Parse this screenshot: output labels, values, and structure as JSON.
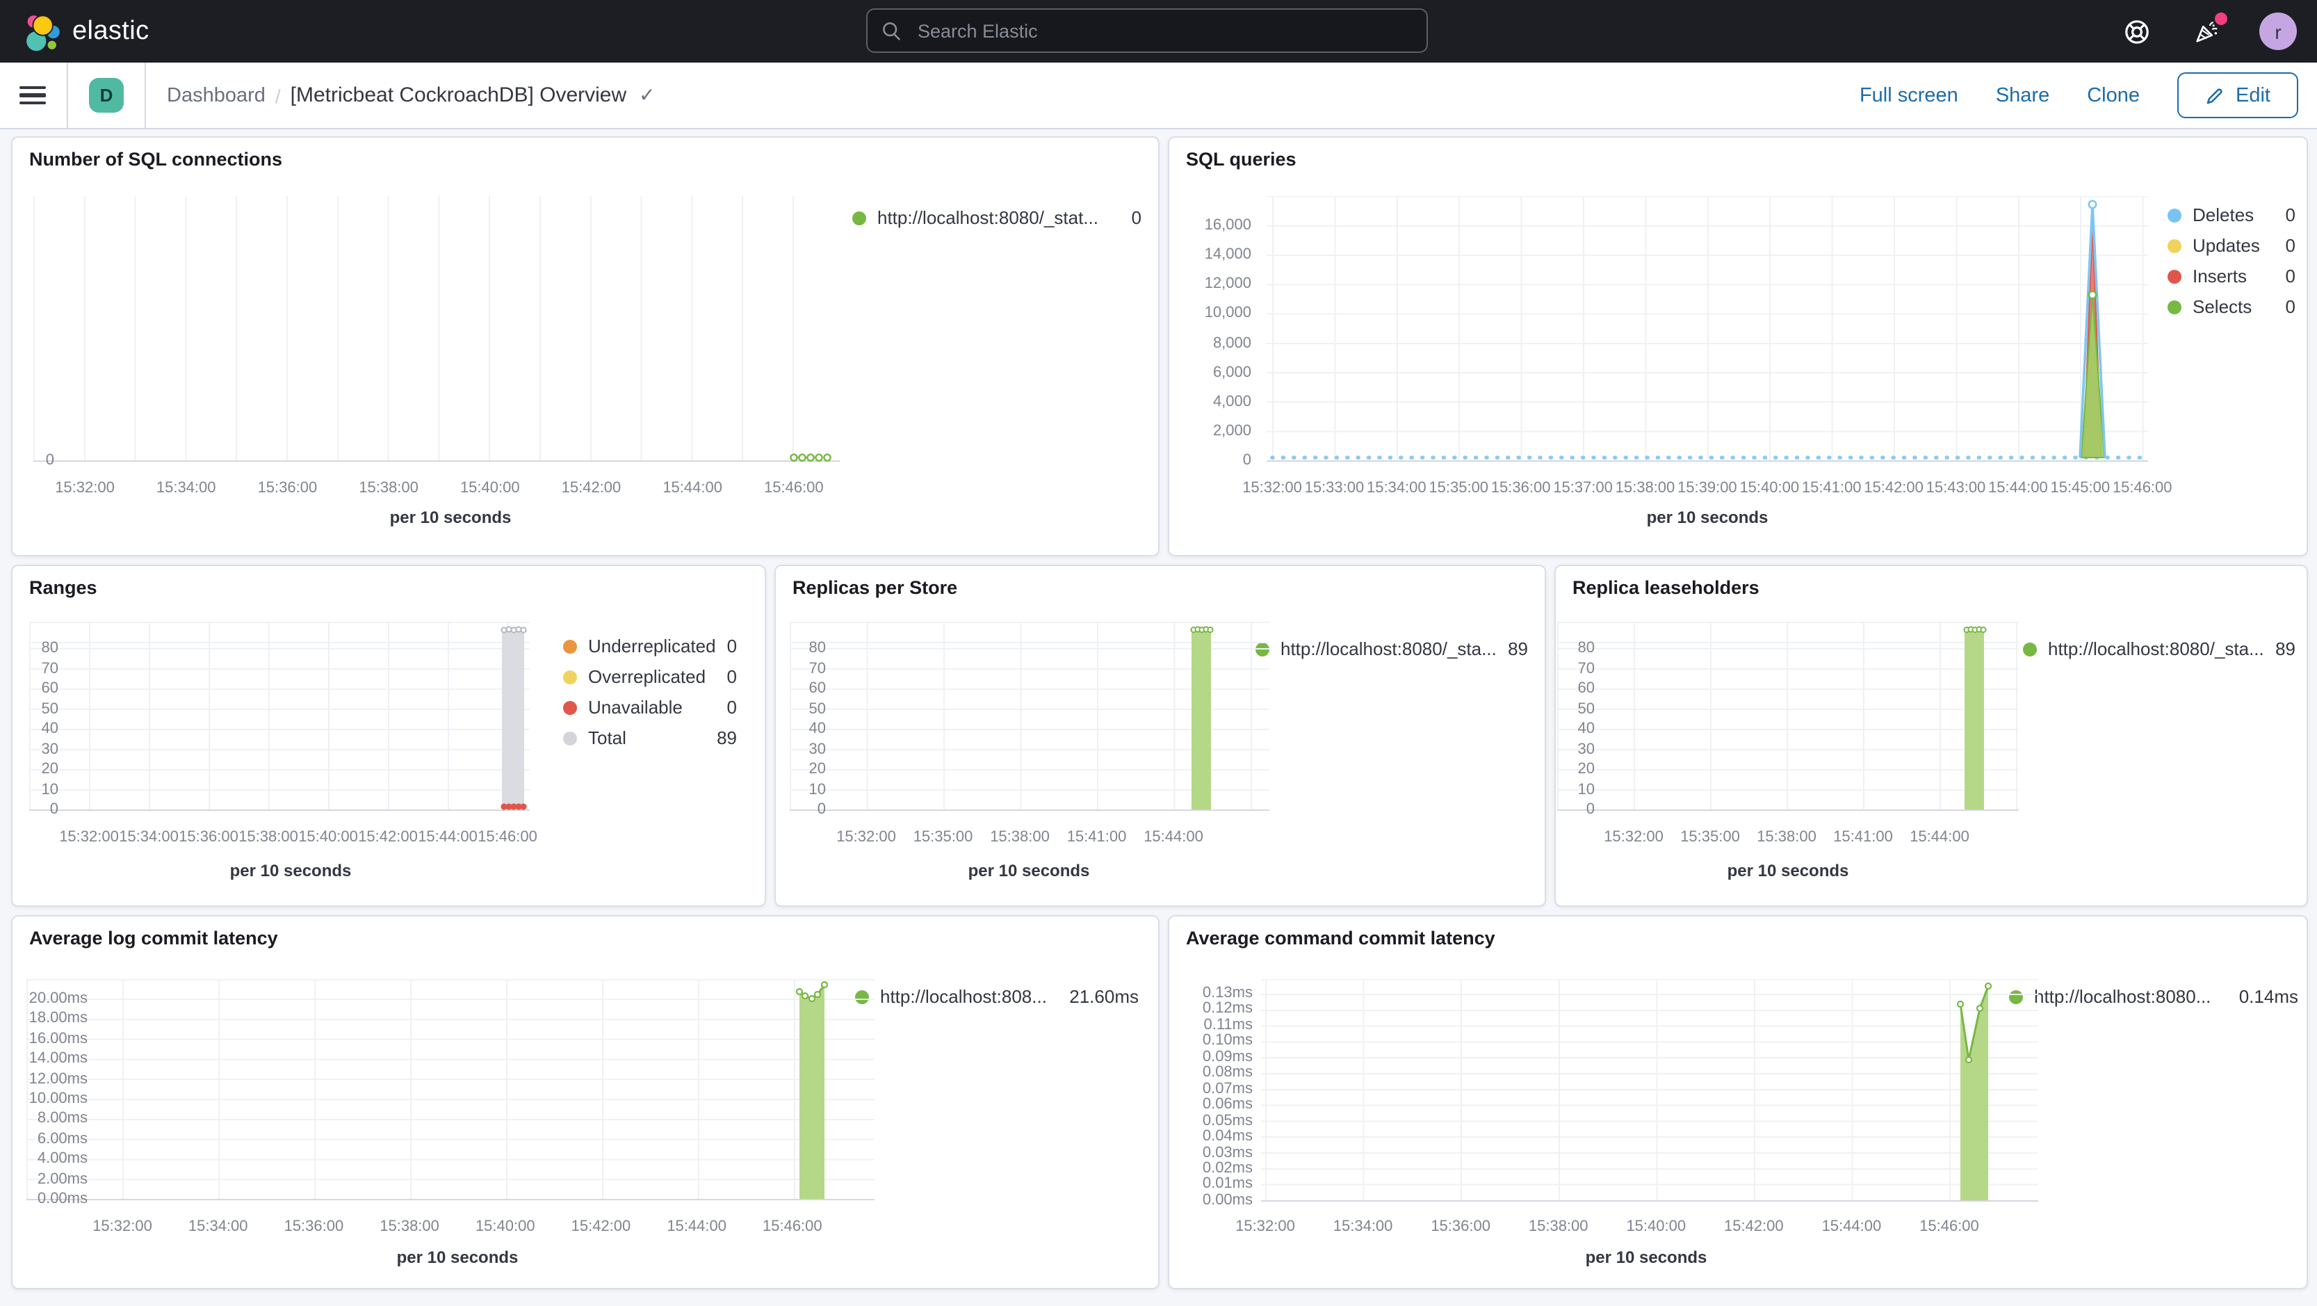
{
  "topbar": {
    "brand": "elastic",
    "search_placeholder": "Search Elastic",
    "avatar_initial": "r"
  },
  "icons": {
    "check": "✓"
  },
  "navbar": {
    "space_initial": "D",
    "breadcrumb_root": "Dashboard",
    "breadcrumb_sep": "/",
    "title": "[Metricbeat CockroachDB] Overview",
    "full_screen": "Full screen",
    "share": "Share",
    "clone": "Clone",
    "edit": "Edit"
  },
  "charts": {
    "sql_connections": {
      "title": "Number of SQL connections",
      "axis_label": "per 10 seconds",
      "y_ticks": [
        "0"
      ],
      "x_ticks": [
        "15:32:00",
        "15:34:00",
        "15:36:00",
        "15:38:00",
        "15:40:00",
        "15:42:00",
        "15:44:00",
        "15:46:00"
      ],
      "legend": [
        {
          "label": "http://localhost:8080/_stat...",
          "value": "0",
          "color": "#77b843"
        }
      ]
    },
    "sql_queries": {
      "title": "SQL queries",
      "axis_label": "per 10 seconds",
      "y_ticks": [
        "16,000",
        "14,000",
        "12,000",
        "10,000",
        "8,000",
        "6,000",
        "4,000",
        "2,000",
        "0"
      ],
      "x_ticks": [
        "15:32:00",
        "15:33:00",
        "15:34:00",
        "15:35:00",
        "15:36:00",
        "15:37:00",
        "15:38:00",
        "15:39:00",
        "15:40:00",
        "15:41:00",
        "15:42:00",
        "15:43:00",
        "15:44:00",
        "15:45:00",
        "15:46:00"
      ],
      "legend": [
        {
          "label": "Deletes",
          "value": "0",
          "color": "#79c3f2"
        },
        {
          "label": "Updates",
          "value": "0",
          "color": "#f0d35e"
        },
        {
          "label": "Inserts",
          "value": "0",
          "color": "#e0564b"
        },
        {
          "label": "Selects",
          "value": "0",
          "color": "#77b843"
        }
      ]
    },
    "ranges": {
      "title": "Ranges",
      "axis_label": "per 10 seconds",
      "y_ticks": [
        "80",
        "70",
        "60",
        "50",
        "40",
        "30",
        "20",
        "10",
        "0"
      ],
      "x_ticks": [
        "15:32:00",
        "15:34:00",
        "15:36:00",
        "15:38:00",
        "15:40:00",
        "15:42:00",
        "15:44:00",
        "15:46:00"
      ],
      "legend": [
        {
          "label": "Underreplicated",
          "value": "0",
          "color": "#ea963c"
        },
        {
          "label": "Overreplicated",
          "value": "0",
          "color": "#f0d35e"
        },
        {
          "label": "Unavailable",
          "value": "0",
          "color": "#e0564b"
        },
        {
          "label": "Total",
          "value": "89",
          "color": "#d3d5db"
        }
      ]
    },
    "replicas_per_store": {
      "title": "Replicas per Store",
      "axis_label": "per 10 seconds",
      "y_ticks": [
        "80",
        "70",
        "60",
        "50",
        "40",
        "30",
        "20",
        "10",
        "0"
      ],
      "x_ticks": [
        "15:32:00",
        "15:35:00",
        "15:38:00",
        "15:41:00",
        "15:44:00"
      ],
      "legend": [
        {
          "label": "http://localhost:8080/_sta...",
          "value": "89",
          "color": "#77b843"
        }
      ]
    },
    "replica_leaseholders": {
      "title": "Replica leaseholders",
      "axis_label": "per 10 seconds",
      "y_ticks": [
        "80",
        "70",
        "60",
        "50",
        "40",
        "30",
        "20",
        "10",
        "0"
      ],
      "x_ticks": [
        "15:32:00",
        "15:35:00",
        "15:38:00",
        "15:41:00",
        "15:44:00"
      ],
      "legend": [
        {
          "label": "http://localhost:8080/_sta...",
          "value": "89",
          "color": "#77b843"
        }
      ]
    },
    "avg_log_commit_latency": {
      "title": "Average log commit latency",
      "axis_label": "per 10 seconds",
      "y_ticks": [
        "20.00ms",
        "18.00ms",
        "16.00ms",
        "14.00ms",
        "12.00ms",
        "10.00ms",
        "8.00ms",
        "6.00ms",
        "4.00ms",
        "2.00ms",
        "0.00ms"
      ],
      "x_ticks": [
        "15:32:00",
        "15:34:00",
        "15:36:00",
        "15:38:00",
        "15:40:00",
        "15:42:00",
        "15:44:00",
        "15:46:00"
      ],
      "legend": [
        {
          "label": "http://localhost:808...",
          "value": "21.60ms",
          "color": "#77b843"
        }
      ]
    },
    "avg_command_commit_latency": {
      "title": "Average command commit latency",
      "axis_label": "per 10 seconds",
      "y_ticks": [
        "0.13ms",
        "0.12ms",
        "0.11ms",
        "0.10ms",
        "0.09ms",
        "0.08ms",
        "0.07ms",
        "0.06ms",
        "0.05ms",
        "0.04ms",
        "0.03ms",
        "0.02ms",
        "0.01ms",
        "0.00ms"
      ],
      "x_ticks": [
        "15:32:00",
        "15:34:00",
        "15:36:00",
        "15:38:00",
        "15:40:00",
        "15:42:00",
        "15:44:00",
        "15:46:00"
      ],
      "legend": [
        {
          "label": "http://localhost:8080...",
          "value": "0.14ms",
          "color": "#77b843"
        }
      ]
    }
  },
  "chart_data": [
    {
      "type": "line",
      "title": "Number of SQL connections",
      "xlabel": "per 10 seconds",
      "x_axis_range": [
        "15:32:00",
        "15:47:00"
      ],
      "grid": true,
      "legend_position": "right",
      "series": [
        {
          "name": "http://localhost:8080/_stat...",
          "color": "#77b843",
          "x": [
            "15:46:00",
            "15:46:10",
            "15:46:20",
            "15:46:30",
            "15:46:40"
          ],
          "values": [
            0,
            0,
            0,
            0,
            0
          ],
          "latest": 0
        }
      ]
    },
    {
      "type": "area",
      "title": "SQL queries",
      "xlabel": "per 10 seconds",
      "x_axis_range": [
        "15:32:00",
        "15:46:40"
      ],
      "ylim": [
        0,
        16000
      ],
      "grid": true,
      "legend_position": "right",
      "series": [
        {
          "name": "Deletes",
          "color": "#79c3f2",
          "shape": "flat 0 across range with single spike",
          "spike": {
            "x": "15:45:50",
            "y": 17400
          },
          "latest": 0
        },
        {
          "name": "Updates",
          "color": "#f0d35e",
          "shape": "flat 0",
          "latest": 0
        },
        {
          "name": "Inserts",
          "color": "#e0564b",
          "shape": "flat 0 with single spike",
          "spike": {
            "x": "15:45:50",
            "y": 15700
          },
          "latest": 0
        },
        {
          "name": "Selects",
          "color": "#77b843",
          "shape": "flat 0 with single spike",
          "spike": {
            "x": "15:45:50",
            "y": 11300
          },
          "latest": 0
        }
      ]
    },
    {
      "type": "area",
      "title": "Ranges",
      "xlabel": "per 10 seconds",
      "x_axis_range": [
        "15:32:00",
        "15:46:40"
      ],
      "ylim": [
        0,
        89
      ],
      "grid": true,
      "legend_position": "right",
      "series": [
        {
          "name": "Underreplicated",
          "color": "#ea963c",
          "values": [
            0,
            0,
            0,
            0,
            0
          ],
          "latest": 0
        },
        {
          "name": "Overreplicated",
          "color": "#f0d35e",
          "values": [
            0,
            0,
            0,
            0,
            0
          ],
          "latest": 0
        },
        {
          "name": "Unavailable",
          "color": "#e0564b",
          "x": [
            "15:45:50",
            "15:46:00",
            "15:46:10",
            "15:46:20",
            "15:46:30"
          ],
          "values": [
            0,
            0,
            0,
            0,
            0
          ],
          "latest": 0
        },
        {
          "name": "Total",
          "color": "#d3d5db",
          "x": [
            "15:45:50",
            "15:46:00",
            "15:46:10",
            "15:46:20",
            "15:46:30"
          ],
          "values": [
            89,
            89,
            89,
            89,
            89
          ],
          "latest": 89
        }
      ]
    },
    {
      "type": "area",
      "title": "Replicas per Store",
      "xlabel": "per 10 seconds",
      "x_axis_range": [
        "15:32:00",
        "15:45:30"
      ],
      "ylim": [
        0,
        89
      ],
      "grid": true,
      "legend_position": "right",
      "series": [
        {
          "name": "http://localhost:8080/_sta...",
          "color": "#77b843",
          "x": [
            "15:45:00",
            "15:45:10",
            "15:45:20",
            "15:45:30",
            "15:45:40"
          ],
          "values": [
            89,
            89,
            89,
            89,
            89
          ],
          "latest": 89
        }
      ]
    },
    {
      "type": "area",
      "title": "Replica leaseholders",
      "xlabel": "per 10 seconds",
      "x_axis_range": [
        "15:32:00",
        "15:45:30"
      ],
      "ylim": [
        0,
        89
      ],
      "grid": true,
      "legend_position": "right",
      "series": [
        {
          "name": "http://localhost:8080/_sta...",
          "color": "#77b843",
          "x": [
            "15:45:00",
            "15:45:10",
            "15:45:20",
            "15:45:30",
            "15:45:40"
          ],
          "values": [
            89,
            89,
            89,
            89,
            89
          ],
          "latest": 89
        }
      ]
    },
    {
      "type": "area",
      "title": "Average log commit latency",
      "xlabel": "per 10 seconds",
      "y_unit": "ms",
      "x_axis_range": [
        "15:32:00",
        "15:46:40"
      ],
      "ylim": [
        0,
        21.6
      ],
      "grid": true,
      "legend_position": "right",
      "series": [
        {
          "name": "http://localhost:808...",
          "color": "#77b843",
          "x": [
            "15:46:00",
            "15:46:10",
            "15:46:20",
            "15:46:30",
            "15:46:40"
          ],
          "values": [
            20.7,
            20.4,
            20.0,
            20.4,
            21.6
          ],
          "latest": "21.60ms"
        }
      ]
    },
    {
      "type": "area",
      "title": "Average command commit latency",
      "xlabel": "per 10 seconds",
      "y_unit": "ms",
      "x_axis_range": [
        "15:32:00",
        "15:46:40"
      ],
      "ylim": [
        0,
        0.14
      ],
      "grid": true,
      "legend_position": "right",
      "series": [
        {
          "name": "http://localhost:8080...",
          "color": "#77b843",
          "x": [
            "15:46:10",
            "15:46:20",
            "15:46:30",
            "15:46:40"
          ],
          "values": [
            0.124,
            0.089,
            0.121,
            0.135
          ],
          "latest": "0.14ms"
        }
      ]
    }
  ]
}
